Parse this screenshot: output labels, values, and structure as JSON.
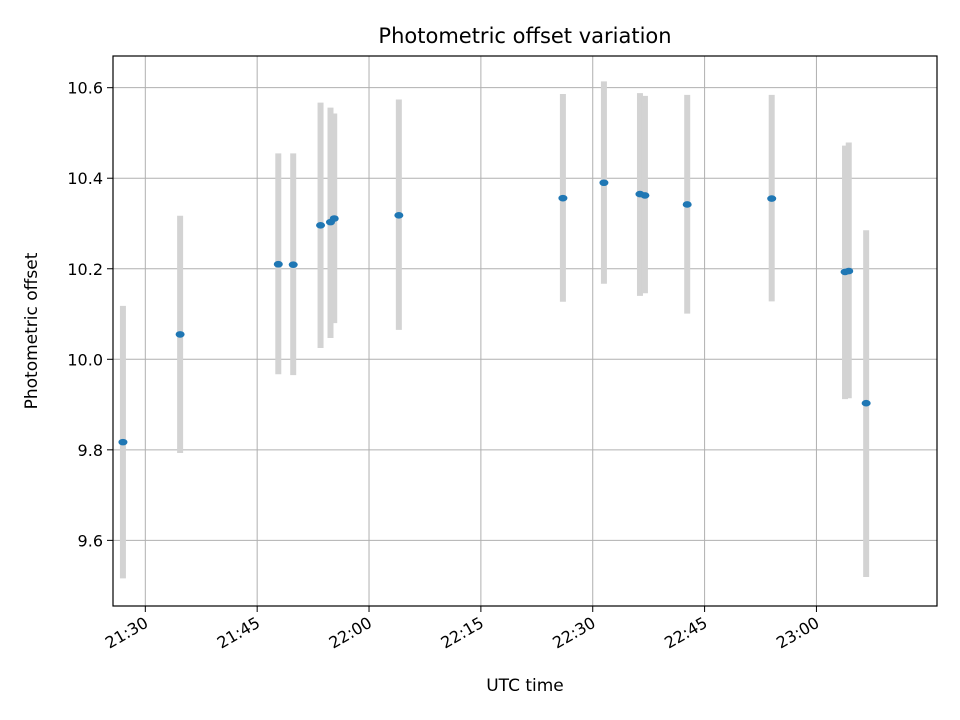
{
  "chart_data": {
    "type": "scatter",
    "title": "Photometric offset variation",
    "xlabel": "UTC time",
    "ylabel": "Photometric offset",
    "xlim": [
      "21:25:40",
      "23:16:10"
    ],
    "ylim": [
      9.455,
      10.67
    ],
    "xticks": [
      "21:30",
      "21:45",
      "22:00",
      "22:15",
      "22:30",
      "22:45",
      "23:00"
    ],
    "yticks": [
      "9.6",
      "9.8",
      "10.0",
      "10.2",
      "10.4",
      "10.6"
    ],
    "grid": true,
    "error_bar_color": "#d3d3d3",
    "marker_color": "#1f77b4",
    "points": [
      {
        "t": "21:27:00",
        "y": 9.817,
        "ylo": 9.516,
        "yhi": 10.118
      },
      {
        "t": "21:34:40",
        "y": 10.055,
        "ylo": 9.793,
        "yhi": 10.317
      },
      {
        "t": "21:47:50",
        "y": 10.21,
        "ylo": 9.967,
        "yhi": 10.455
      },
      {
        "t": "21:49:50",
        "y": 10.209,
        "ylo": 9.965,
        "yhi": 10.455
      },
      {
        "t": "21:53:30",
        "y": 10.296,
        "ylo": 10.025,
        "yhi": 10.567
      },
      {
        "t": "21:54:50",
        "y": 10.303,
        "ylo": 10.047,
        "yhi": 10.556
      },
      {
        "t": "21:55:20",
        "y": 10.311,
        "ylo": 10.08,
        "yhi": 10.543
      },
      {
        "t": "22:04:00",
        "y": 10.318,
        "ylo": 10.065,
        "yhi": 10.574
      },
      {
        "t": "22:26:00",
        "y": 10.356,
        "ylo": 10.127,
        "yhi": 10.586
      },
      {
        "t": "22:31:30",
        "y": 10.39,
        "ylo": 10.167,
        "yhi": 10.614
      },
      {
        "t": "22:36:20",
        "y": 10.365,
        "ylo": 10.14,
        "yhi": 10.588
      },
      {
        "t": "22:37:00",
        "y": 10.362,
        "ylo": 10.146,
        "yhi": 10.582
      },
      {
        "t": "22:42:40",
        "y": 10.342,
        "ylo": 10.101,
        "yhi": 10.584
      },
      {
        "t": "22:54:00",
        "y": 10.355,
        "ylo": 10.128,
        "yhi": 10.584
      },
      {
        "t": "23:03:50",
        "y": 10.193,
        "ylo": 9.912,
        "yhi": 10.472
      },
      {
        "t": "23:04:20",
        "y": 10.195,
        "ylo": 9.914,
        "yhi": 10.479
      },
      {
        "t": "23:06:40",
        "y": 9.903,
        "ylo": 9.519,
        "yhi": 10.285
      }
    ]
  }
}
